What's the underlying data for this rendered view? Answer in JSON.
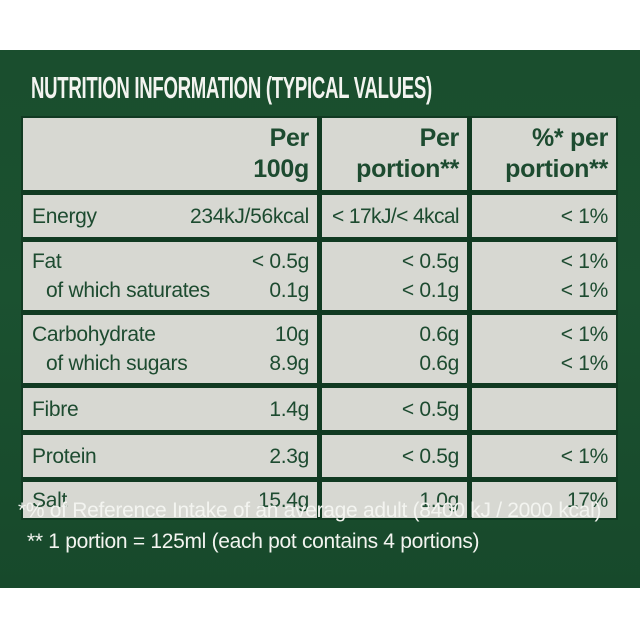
{
  "panel": {
    "title": "NUTRITION INFORMATION (TYPICAL VALUES)"
  },
  "table": {
    "header": {
      "col1": {
        "line1": "Per",
        "line2": "100g"
      },
      "col2": {
        "line1": "Per",
        "line2": "portion**"
      },
      "col3": {
        "line1": "%* per",
        "line2": "portion**"
      }
    },
    "rows": [
      {
        "lines": [
          {
            "label": "Energy",
            "per100": "234kJ/56kcal",
            "portion": "< 17kJ/< 4kcal",
            "pct": "< 1%"
          }
        ]
      },
      {
        "lines": [
          {
            "label": "Fat",
            "per100": "< 0.5g",
            "portion": "< 0.5g",
            "pct": "< 1%"
          },
          {
            "label": "of which saturates",
            "per100": "0.1g",
            "portion": "< 0.1g",
            "pct": "< 1%"
          }
        ]
      },
      {
        "lines": [
          {
            "label": "Carbohydrate",
            "per100": "10g",
            "portion": "0.6g",
            "pct": "< 1%"
          },
          {
            "label": "of which sugars",
            "per100": "8.9g",
            "portion": "0.6g",
            "pct": "< 1%"
          }
        ]
      },
      {
        "lines": [
          {
            "label": "Fibre",
            "per100": "1.4g",
            "portion": "< 0.5g",
            "pct": ""
          }
        ]
      },
      {
        "lines": [
          {
            "label": "Protein",
            "per100": "2.3g",
            "portion": "< 0.5g",
            "pct": "< 1%"
          }
        ]
      },
      {
        "lines": [
          {
            "label": "Salt",
            "per100": "15.4g",
            "portion": "1.0g",
            "pct": "17%"
          }
        ]
      }
    ]
  },
  "footnotes": {
    "reference_intake": "*% of Reference Intake of an average adult (8400 kJ / 2000 kcal)",
    "portion_definition": "** 1 portion = 125ml (each pot contains 4 portions)"
  },
  "colors": {
    "field_green": "#1B5130",
    "border_green": "#113A22",
    "cell_gray": "#D7D8D2",
    "text_green": "#1D4B30",
    "text_white": "#F3F4F0",
    "page_white": "#FFFFFF"
  }
}
